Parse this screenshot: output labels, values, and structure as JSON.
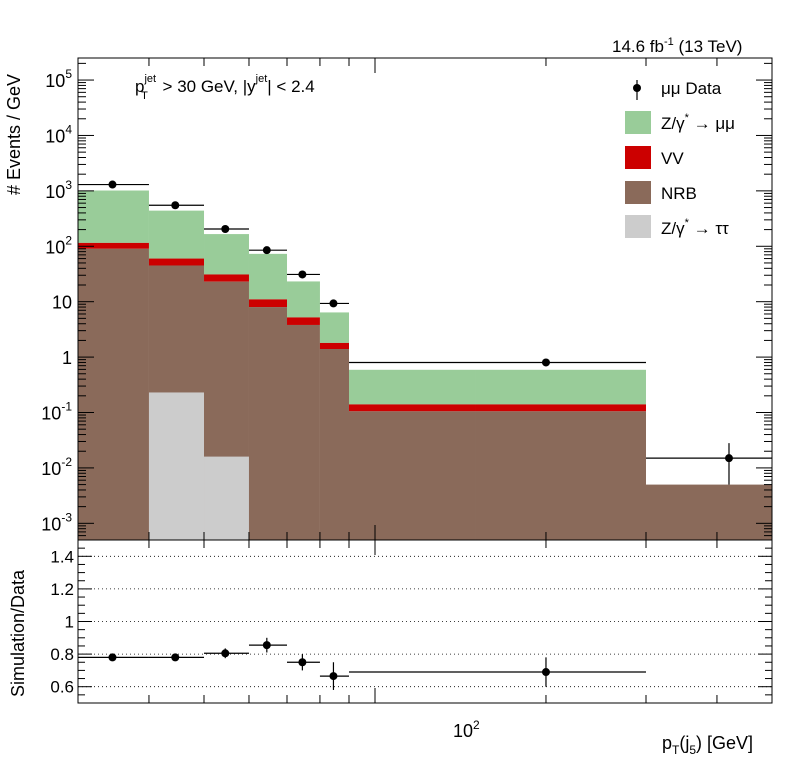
{
  "header": {
    "lumi_text": "14.6 fb",
    "lumi_sup": "-1",
    "lumi_energy": " (13 TeV)"
  },
  "cut": {
    "p": "p",
    "jet1": "jet",
    "T": "T",
    "gt": " > 30 GeV,  |y",
    "jet2": "jet",
    "lt": "| < 2.4"
  },
  "axes": {
    "ylabel_top": "# Events / GeV",
    "ylabel_bottom": "Simulation/Data",
    "xlabel_main": "p",
    "xlabel_sub1": "T",
    "xlabel_mid": "(j",
    "xlabel_sub2": "5",
    "xlabel_end": ") [GeV]",
    "xtick_100": "10",
    "xtick_100_sup": "2"
  },
  "legend": {
    "data": "μμ Data",
    "zmm_pre": "Z/γ",
    "zmm_post": " → μμ",
    "vv": "VV",
    "nrb": "NRB",
    "ztt_pre": "Z/γ",
    "ztt_post": " → ττ",
    "star": "*"
  },
  "colors": {
    "zmm": "#99cc99",
    "vv": "#cc0000",
    "nrb": "#8a6a5a",
    "ztt": "#cccccc"
  },
  "chart_data": [
    {
      "type": "bar",
      "subtype": "stacked-histogram",
      "xscale": "log",
      "yscale": "log",
      "xlim": [
        30,
        500
      ],
      "ylim": [
        0.0005,
        250000
      ],
      "yticks": [
        {
          "v": 0.001,
          "b": "10",
          "e": "-3"
        },
        {
          "v": 0.01,
          "b": "10",
          "e": "-2"
        },
        {
          "v": 0.1,
          "b": "10",
          "e": "-1"
        },
        {
          "v": 1,
          "b": "1",
          "e": ""
        },
        {
          "v": 10,
          "b": "10",
          "e": ""
        },
        {
          "v": 100,
          "b": "10",
          "e": "2"
        },
        {
          "v": 1000,
          "b": "10",
          "e": "3"
        },
        {
          "v": 10000,
          "b": "10",
          "e": "4"
        },
        {
          "v": 100000,
          "b": "10",
          "e": "5"
        }
      ],
      "bin_edges": [
        30,
        40,
        50,
        60,
        70,
        80,
        90,
        150,
        300,
        500
      ],
      "series": [
        {
          "name": "NRB",
          "values": [
            90,
            45,
            23,
            8,
            3.8,
            1.4,
            0.105,
            0.105,
            0.005
          ]
        },
        {
          "name": "VV",
          "values": [
            25,
            15,
            8,
            3,
            1.4,
            0.4,
            0.035,
            0.035,
            0.0
          ]
        },
        {
          "name": "Z/γ* → μμ",
          "values": [
            900,
            380,
            135,
            62,
            18,
            4.6,
            0.45,
            0.45,
            0.0
          ]
        },
        {
          "name": "Z/γ* → ττ",
          "values": [
            0,
            0.23,
            0.016,
            0,
            0,
            0,
            0,
            0,
            0
          ]
        }
      ],
      "data_points": [
        {
          "x": 34.5,
          "y": 1300,
          "xerr": [
            30,
            40
          ]
        },
        {
          "x": 44.5,
          "y": 550,
          "xerr": [
            40,
            50
          ]
        },
        {
          "x": 54.5,
          "y": 205,
          "xerr": [
            50,
            60
          ]
        },
        {
          "x": 64.5,
          "y": 85,
          "xerr": [
            60,
            70
          ]
        },
        {
          "x": 74.5,
          "y": 31,
          "xerr": [
            70,
            80
          ]
        },
        {
          "x": 84.5,
          "y": 9.3,
          "xerr": [
            80,
            90
          ]
        },
        {
          "x": 200,
          "y": 0.8,
          "xerr": [
            90,
            300
          ]
        },
        {
          "x": 420,
          "y": 0.015,
          "xerr": [
            300,
            500
          ],
          "yerr": [
            0.005,
            0.028
          ]
        }
      ]
    },
    {
      "type": "scatter",
      "role": "ratio",
      "xscale": "log",
      "ylim": [
        0.5,
        1.5
      ],
      "yticks": [
        0.6,
        0.8,
        1,
        1.2,
        1.4
      ],
      "points": [
        {
          "x": 34.5,
          "y": 0.78,
          "xerr": [
            30,
            40
          ],
          "yerr": 0.015
        },
        {
          "x": 44.5,
          "y": 0.78,
          "xerr": [
            40,
            50
          ],
          "yerr": 0.015
        },
        {
          "x": 54.5,
          "y": 0.805,
          "xerr": [
            50,
            60
          ],
          "yerr": 0.03
        },
        {
          "x": 64.5,
          "y": 0.855,
          "xerr": [
            60,
            70
          ],
          "yerr": 0.045
        },
        {
          "x": 74.5,
          "y": 0.75,
          "xerr": [
            70,
            80
          ],
          "yerr": 0.05
        },
        {
          "x": 84.5,
          "y": 0.665,
          "xerr": [
            80,
            90
          ],
          "yerr": 0.085
        },
        {
          "x": 200,
          "y": 0.69,
          "xerr": [
            90,
            300
          ],
          "yerr": 0.09
        }
      ]
    }
  ]
}
